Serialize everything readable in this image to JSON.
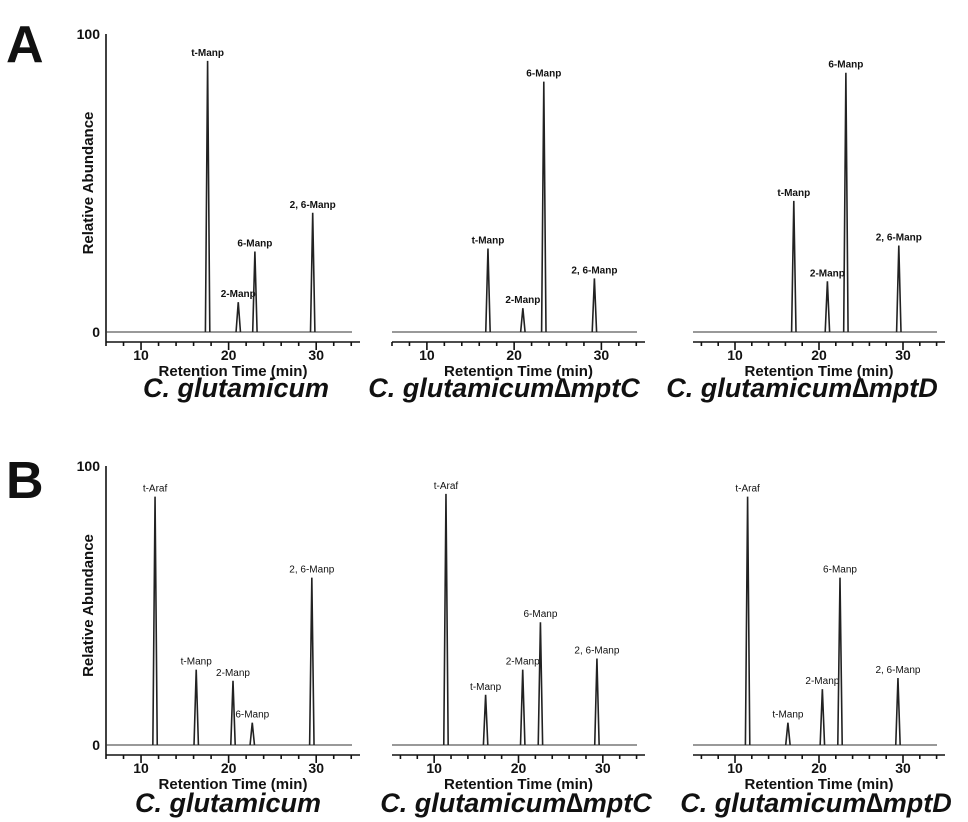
{
  "panel_letters": [
    "A",
    "B"
  ],
  "chart_data": [
    {
      "panel": "A",
      "type": "line",
      "title": "C. glutamicum",
      "xlabel": "Retention Time (min)",
      "ylabel": "Relative Abundance",
      "xlim": [
        6,
        35
      ],
      "ylim": [
        0,
        100
      ],
      "xticks": [
        "10",
        "20",
        "30"
      ],
      "yticks": [
        "0",
        "100"
      ],
      "grid": false,
      "peaks": [
        {
          "x": 17.6,
          "y": 91,
          "label": "t-Manp"
        },
        {
          "x": 21.1,
          "y": 10,
          "label": "2-Manp"
        },
        {
          "x": 23.0,
          "y": 27,
          "label": "6-Manp"
        },
        {
          "x": 29.6,
          "y": 40,
          "label": "2, 6-Manp"
        }
      ]
    },
    {
      "panel": "A",
      "type": "line",
      "title": "C. glutamicum∆mptC",
      "xlabel": "Retention Time (min)",
      "ylabel": "",
      "xlim": [
        6,
        35
      ],
      "ylim": [
        0,
        100
      ],
      "xticks": [
        "10",
        "20",
        "30"
      ],
      "yticks": [],
      "grid": false,
      "peaks": [
        {
          "x": 17.0,
          "y": 28,
          "label": "t-Manp"
        },
        {
          "x": 21.0,
          "y": 8,
          "label": "2-Manp"
        },
        {
          "x": 23.4,
          "y": 84,
          "label": "6-Manp"
        },
        {
          "x": 29.2,
          "y": 18,
          "label": "2, 6-Manp"
        }
      ]
    },
    {
      "panel": "A",
      "type": "line",
      "title": "C. glutamicum∆mptD",
      "xlabel": "Retention Time (min)",
      "ylabel": "",
      "xlim": [
        5,
        35
      ],
      "ylim": [
        0,
        100
      ],
      "xticks": [
        "10",
        "20",
        "30"
      ],
      "yticks": [],
      "grid": false,
      "peaks": [
        {
          "x": 17.0,
          "y": 44,
          "label": "t-Manp"
        },
        {
          "x": 21.0,
          "y": 17,
          "label": "2-Manp"
        },
        {
          "x": 23.2,
          "y": 87,
          "label": "6-Manp"
        },
        {
          "x": 29.5,
          "y": 29,
          "label": "2, 6-Manp"
        }
      ]
    },
    {
      "panel": "B",
      "type": "line",
      "title": "C. glutamicum",
      "xlabel": "Retention Time (min)",
      "ylabel": "Relative Abundance",
      "xlim": [
        6,
        35
      ],
      "ylim": [
        0,
        100
      ],
      "xticks": [
        "10",
        "20",
        "30"
      ],
      "yticks": [
        "0",
        "100"
      ],
      "grid": false,
      "peaks": [
        {
          "x": 11.6,
          "y": 89,
          "label": "t-Araf"
        },
        {
          "x": 16.3,
          "y": 27,
          "label": "t-Manp"
        },
        {
          "x": 20.5,
          "y": 23,
          "label": "2-Manp"
        },
        {
          "x": 22.7,
          "y": 8,
          "label": "6-Manp"
        },
        {
          "x": 29.5,
          "y": 60,
          "label": "2, 6-Manp"
        }
      ]
    },
    {
      "panel": "B",
      "type": "line",
      "title": "C. glutamicum∆mptC",
      "xlabel": "Retention Time (min)",
      "ylabel": "",
      "xlim": [
        5,
        35
      ],
      "ylim": [
        0,
        100
      ],
      "xticks": [
        "10",
        "20",
        "30"
      ],
      "yticks": [],
      "grid": false,
      "peaks": [
        {
          "x": 11.4,
          "y": 90,
          "label": "t-Araf"
        },
        {
          "x": 16.1,
          "y": 18,
          "label": "t-Manp"
        },
        {
          "x": 20.5,
          "y": 27,
          "label": "2-Manp"
        },
        {
          "x": 22.6,
          "y": 44,
          "label": "6-Manp"
        },
        {
          "x": 29.3,
          "y": 31,
          "label": "2, 6-Manp"
        }
      ]
    },
    {
      "panel": "B",
      "type": "line",
      "title": "C. glutamicum∆mptD",
      "xlabel": "Retention Time (min)",
      "ylabel": "",
      "xlim": [
        5,
        35
      ],
      "ylim": [
        0,
        100
      ],
      "xticks": [
        "10",
        "20",
        "30"
      ],
      "yticks": [],
      "grid": false,
      "peaks": [
        {
          "x": 11.5,
          "y": 89,
          "label": "t-Araf"
        },
        {
          "x": 16.3,
          "y": 8,
          "label": "t-Manp"
        },
        {
          "x": 20.4,
          "y": 20,
          "label": "2-Manp"
        },
        {
          "x": 22.5,
          "y": 60,
          "label": "6-Manp"
        },
        {
          "x": 29.4,
          "y": 24,
          "label": "2, 6-Manp"
        }
      ]
    }
  ]
}
